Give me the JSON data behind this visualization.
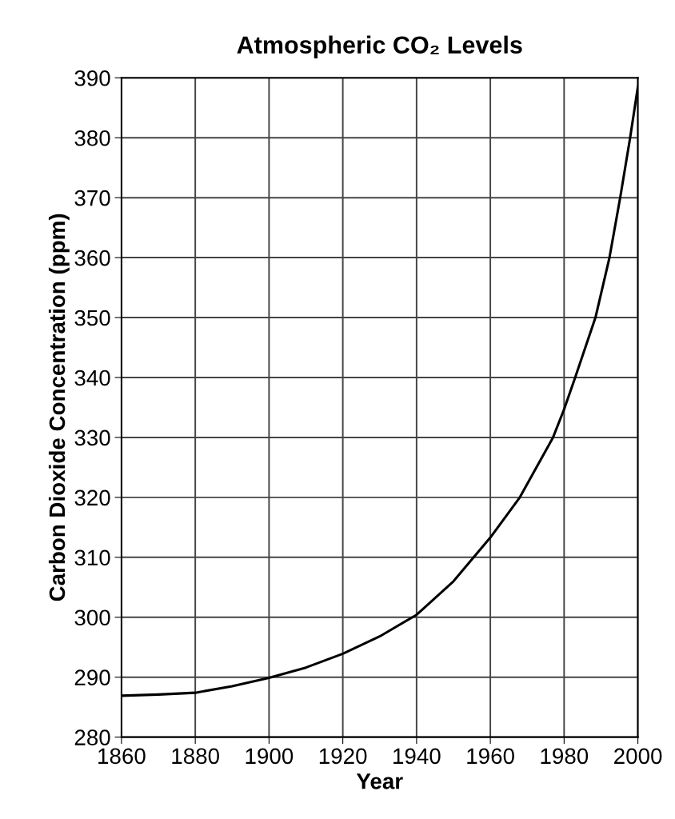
{
  "chart_data": {
    "type": "line",
    "title": "Atmospheric CO₂ Levels",
    "xlabel": "Year",
    "ylabel": "Carbon Dioxide Concentration (ppm)",
    "x": [
      1860,
      1870,
      1880,
      1890,
      1900,
      1910,
      1920,
      1930,
      1940,
      1950,
      1960,
      1968,
      1977,
      1980,
      1983,
      1988.5,
      1992.3,
      1995.2,
      1997.9,
      2000
    ],
    "series": [
      {
        "color": "#000000",
        "values": [
          286.9,
          287.1,
          287.4,
          288.5,
          289.9,
          291.6,
          293.9,
          296.8,
          300.4,
          306,
          313.3,
          320,
          330,
          334.7,
          340,
          350,
          360,
          370,
          380,
          388.5
        ]
      }
    ],
    "xlim": [
      1860,
      2000
    ],
    "xticks": [
      1860,
      1880,
      1900,
      1920,
      1940,
      1960,
      1980,
      2000
    ],
    "ylim": [
      280,
      390
    ],
    "yticks": [
      280,
      290,
      300,
      310,
      320,
      330,
      340,
      350,
      360,
      370,
      380,
      390
    ],
    "grid": true,
    "marker": "none",
    "line_style": "solid"
  }
}
